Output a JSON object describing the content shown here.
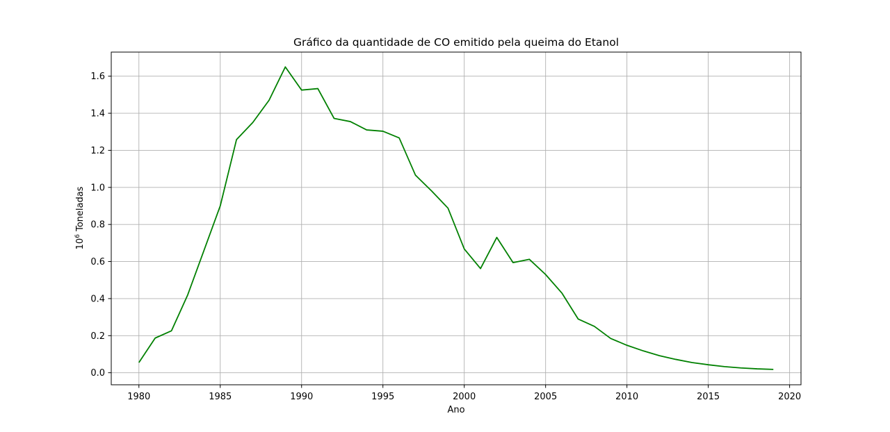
{
  "chart_data": {
    "type": "line",
    "title": "Gráfico da quantidade de CO emitido pela queima do Etanol",
    "xlabel": "Ano",
    "ylabel": {
      "prefix": "10",
      "superscript": "6",
      "text": " Toneladas"
    },
    "xlim": [
      1978.3,
      2020.7
    ],
    "ylim": [
      -0.065,
      1.73
    ],
    "xticks": [
      1980,
      1985,
      1990,
      1995,
      2000,
      2005,
      2010,
      2015,
      2020
    ],
    "yticks": [
      0.0,
      0.2,
      0.4,
      0.6,
      0.8,
      1.0,
      1.2,
      1.4,
      1.6
    ],
    "ytick_labels": [
      "0.0",
      "0.2",
      "0.4",
      "0.6",
      "0.8",
      "1.0",
      "1.2",
      "1.4",
      "1.6"
    ],
    "grid": true,
    "series": [
      {
        "color": "#008000",
        "x": [
          1980,
          1981,
          1982,
          1983,
          1984,
          1985,
          1986,
          1987,
          1988,
          1989,
          1990,
          1991,
          1992,
          1993,
          1994,
          1995,
          1996,
          1997,
          1998,
          1999,
          2000,
          2001,
          2002,
          2003,
          2004,
          2005,
          2006,
          2007,
          2008,
          2009,
          2010,
          2011,
          2012,
          2013,
          2014,
          2015,
          2016,
          2017,
          2018,
          2019
        ],
        "values": [
          0.055,
          0.187,
          0.226,
          0.42,
          0.66,
          0.9,
          1.258,
          1.35,
          1.47,
          1.65,
          1.525,
          1.533,
          1.372,
          1.355,
          1.31,
          1.303,
          1.267,
          1.066,
          0.98,
          0.888,
          0.668,
          0.562,
          0.73,
          0.594,
          0.612,
          0.53,
          0.43,
          0.29,
          0.25,
          0.185,
          0.148,
          0.118,
          0.092,
          0.072,
          0.055,
          0.043,
          0.033,
          0.026,
          0.021,
          0.018
        ]
      }
    ]
  }
}
